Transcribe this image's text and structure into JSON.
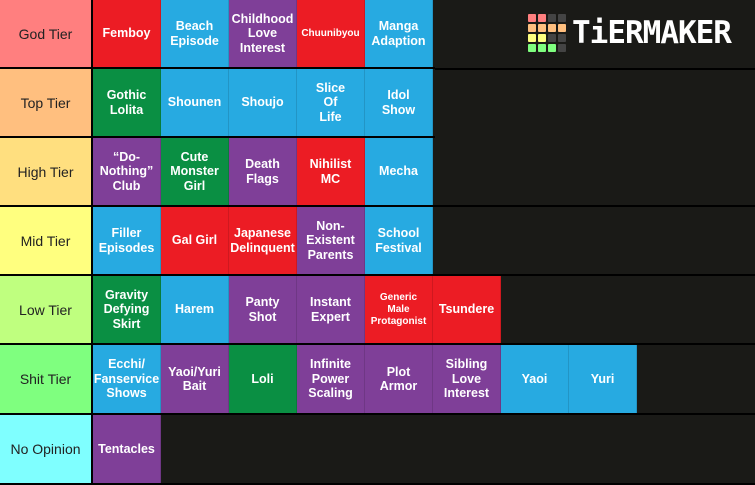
{
  "logo": {
    "text": "TiERMAKER",
    "grid": [
      "#ff7f7f",
      "#ff7f7f",
      "#444444",
      "#444444",
      "#ffbf7f",
      "#ffbf7f",
      "#ffbf7f",
      "#ffbf7f",
      "#ffff7f",
      "#ffff7f",
      "#444444",
      "#444444",
      "#7fff7f",
      "#7fff7f",
      "#7fff7f",
      "#444444"
    ]
  },
  "colors": {
    "red": "#ec1c24",
    "blue": "#27aae1",
    "purple": "#7f3f98",
    "green": "#0a8f43",
    "background": "#1a1a17"
  },
  "tiers": [
    {
      "label": "God Tier",
      "color": "#ff7f7f",
      "items": [
        {
          "text": "Femboy",
          "color": "red"
        },
        {
          "text": "Beach\nEpisode",
          "color": "blue"
        },
        {
          "text": "Childhood\nLove\nInterest",
          "color": "purple"
        },
        {
          "text": "Chuunibyou",
          "color": "red",
          "small": true
        },
        {
          "text": "Manga\nAdaption",
          "color": "blue"
        }
      ]
    },
    {
      "label": "Top Tier",
      "color": "#ffbf7f",
      "items": [
        {
          "text": "Gothic\nLolita",
          "color": "green"
        },
        {
          "text": "Shounen",
          "color": "blue"
        },
        {
          "text": "Shoujo",
          "color": "blue"
        },
        {
          "text": "Slice\nOf\nLife",
          "color": "blue"
        },
        {
          "text": "Idol\nShow",
          "color": "blue"
        }
      ]
    },
    {
      "label": "High Tier",
      "color": "#ffdf7f",
      "items": [
        {
          "text": "“Do-\nNothing”\nClub",
          "color": "purple"
        },
        {
          "text": "Cute\nMonster\nGirl",
          "color": "green"
        },
        {
          "text": "Death\nFlags",
          "color": "purple"
        },
        {
          "text": "Nihilist\nMC",
          "color": "red"
        },
        {
          "text": "Mecha",
          "color": "blue"
        }
      ]
    },
    {
      "label": "Mid Tier",
      "color": "#ffff7f",
      "items": [
        {
          "text": "Filler\nEpisodes",
          "color": "blue"
        },
        {
          "text": "Gal Girl",
          "color": "red"
        },
        {
          "text": "Japanese\nDelinquent",
          "color": "red"
        },
        {
          "text": "Non-\nExistent\nParents",
          "color": "purple"
        },
        {
          "text": "School\nFestival",
          "color": "blue"
        }
      ]
    },
    {
      "label": "Low Tier",
      "color": "#bfff7f",
      "items": [
        {
          "text": "Gravity\nDefying\nSkirt",
          "color": "green"
        },
        {
          "text": "Harem",
          "color": "blue"
        },
        {
          "text": "Panty\nShot",
          "color": "purple"
        },
        {
          "text": "Instant\nExpert",
          "color": "purple"
        },
        {
          "text": "Generic\nMale\nProtagonist",
          "color": "red",
          "small": true
        },
        {
          "text": "Tsundere",
          "color": "red"
        }
      ]
    },
    {
      "label": "Shit Tier",
      "color": "#7fff7f",
      "items": [
        {
          "text": "Ecchi/\nFanservice\nShows",
          "color": "blue"
        },
        {
          "text": "Yaoi/Yuri\nBait",
          "color": "purple"
        },
        {
          "text": "Loli",
          "color": "green"
        },
        {
          "text": "Infinite\nPower\nScaling",
          "color": "purple"
        },
        {
          "text": "Plot\nArmor",
          "color": "purple"
        },
        {
          "text": "Sibling\nLove\nInterest",
          "color": "purple"
        },
        {
          "text": "Yaoi",
          "color": "blue"
        },
        {
          "text": "Yuri",
          "color": "blue"
        }
      ]
    },
    {
      "label": "No Opinion",
      "color": "#7fffff",
      "items": [
        {
          "text": "Tentacles",
          "color": "purple"
        }
      ]
    }
  ]
}
